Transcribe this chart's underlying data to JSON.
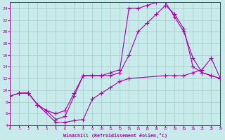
{
  "xlabel": "Windchill (Refroidissement éolien,°C)",
  "ylabel": "",
  "xlim": [
    0,
    23
  ],
  "ylim": [
    4,
    25
  ],
  "xticks": [
    0,
    1,
    2,
    3,
    4,
    5,
    6,
    7,
    8,
    9,
    10,
    11,
    12,
    13,
    14,
    15,
    16,
    17,
    18,
    19,
    20,
    21,
    22,
    23
  ],
  "yticks": [
    4,
    6,
    8,
    10,
    12,
    14,
    16,
    18,
    20,
    22,
    24
  ],
  "bg_color": "#c8eaea",
  "line_color": "#aa00aa",
  "grid_color": "#9ecece",
  "line1_x": [
    0,
    1,
    2,
    3,
    4,
    5,
    6,
    7,
    8,
    9,
    10,
    11,
    12,
    13,
    14,
    15,
    16,
    17,
    18,
    19,
    20,
    21,
    22,
    23
  ],
  "line1_y": [
    9.0,
    9.5,
    9.5,
    7.5,
    6.5,
    5.0,
    5.5,
    9.0,
    12.5,
    12.5,
    12.5,
    12.5,
    13.0,
    16.0,
    20.0,
    21.5,
    23.0,
    24.5,
    23.0,
    20.5,
    14.0,
    13.0,
    12.5,
    12.0
  ],
  "line2_x": [
    1,
    2,
    3,
    4,
    5,
    6,
    7,
    8,
    9,
    10,
    11,
    12,
    13,
    14,
    15,
    16,
    17,
    18,
    19,
    20,
    21,
    22,
    23
  ],
  "line2_y": [
    9.5,
    9.5,
    7.5,
    6.5,
    6.0,
    6.5,
    9.5,
    12.5,
    12.5,
    12.5,
    13.0,
    13.5,
    24.0,
    24.0,
    24.5,
    25.0,
    25.0,
    22.5,
    20.0,
    15.5,
    13.0,
    12.5,
    12.0
  ],
  "line3_x": [
    0,
    1,
    2,
    3,
    5,
    6,
    7,
    8,
    9,
    10,
    11,
    12,
    13,
    17,
    18,
    19,
    20,
    21,
    22,
    23
  ],
  "line3_y": [
    9.0,
    9.5,
    9.5,
    7.5,
    4.5,
    4.5,
    4.8,
    5.0,
    8.5,
    9.5,
    10.5,
    11.5,
    12.0,
    12.5,
    12.5,
    12.5,
    13.0,
    13.5,
    15.5,
    12.0
  ]
}
